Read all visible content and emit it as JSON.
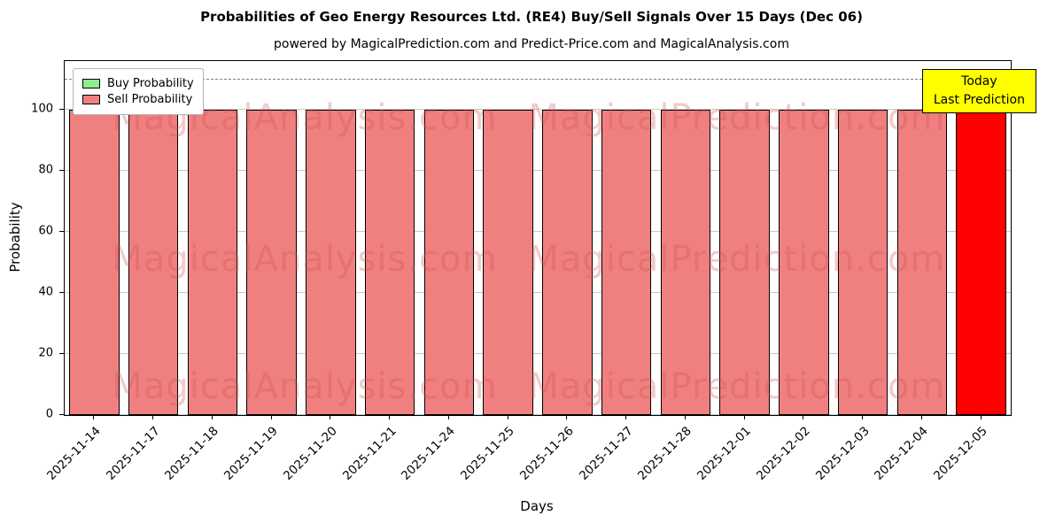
{
  "title": "Probabilities of Geo Energy Resources Ltd. (RE4) Buy/Sell Signals Over 15 Days (Dec 06)",
  "subtitle": "powered by MagicalPrediction.com and Predict-Price.com and MagicalAnalysis.com",
  "legend": {
    "items": [
      {
        "label": "Buy Probability",
        "color": "#90EE90"
      },
      {
        "label": "Sell Probability",
        "color": "#F08080"
      }
    ]
  },
  "annotation": {
    "line1": "Today",
    "line2": "Last Prediction",
    "bg": "#FFFF00"
  },
  "watermarks": [
    "MagicalAnalysis.com",
    "MagicalPrediction.com"
  ],
  "chart_data": {
    "type": "bar",
    "title": "Probabilities of Geo Energy Resources Ltd. (RE4) Buy/Sell Signals Over 15 Days (Dec 06)",
    "xlabel": "Days",
    "ylabel": "Probability",
    "categories": [
      "2025-11-14",
      "2025-11-17",
      "2025-11-18",
      "2025-11-19",
      "2025-11-20",
      "2025-11-21",
      "2025-11-24",
      "2025-11-25",
      "2025-11-26",
      "2025-11-27",
      "2025-11-28",
      "2025-12-01",
      "2025-12-02",
      "2025-12-03",
      "2025-12-04",
      "2025-12-05"
    ],
    "series": [
      {
        "name": "Buy Probability",
        "color": "#90EE90",
        "values": [
          0,
          0,
          0,
          0,
          0,
          0,
          0,
          0,
          0,
          0,
          0,
          0,
          0,
          0,
          0,
          0
        ]
      },
      {
        "name": "Sell Probability",
        "color": "#F08080",
        "values": [
          100,
          100,
          100,
          100,
          100,
          100,
          100,
          100,
          100,
          100,
          100,
          100,
          100,
          100,
          100,
          100
        ]
      }
    ],
    "values": [
      100,
      100,
      100,
      100,
      100,
      100,
      100,
      100,
      100,
      100,
      100,
      100,
      100,
      100,
      100,
      100
    ],
    "bar_colors": [
      "#F08080",
      "#F08080",
      "#F08080",
      "#F08080",
      "#F08080",
      "#F08080",
      "#F08080",
      "#F08080",
      "#F08080",
      "#F08080",
      "#F08080",
      "#F08080",
      "#F08080",
      "#F08080",
      "#F08080",
      "#FF0000"
    ],
    "yticks": [
      0,
      20,
      40,
      60,
      80,
      100
    ],
    "ylim": [
      0,
      116
    ],
    "dashed_line_y": 110,
    "grid": true,
    "legend_position": "upper left"
  }
}
